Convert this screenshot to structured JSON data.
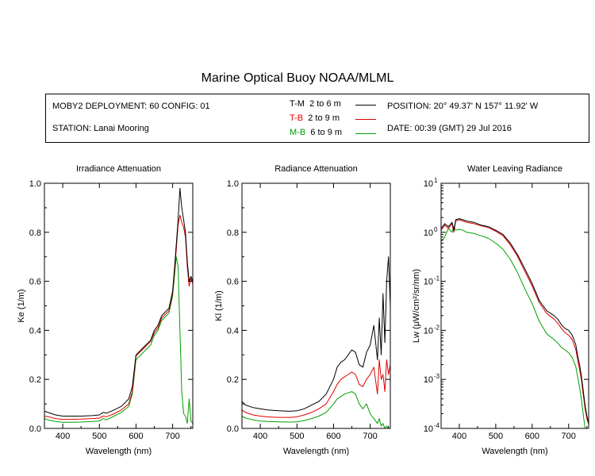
{
  "header": {
    "title": "Marine Optical Buoy NOAA/MLML"
  },
  "info": {
    "deployment": "MOBY2 DEPLOYMENT: 60 CONFIG: 01",
    "station": "STATION: Lanai Mooring",
    "position": "POSITION: 20° 49.37' N   157° 11.92' W",
    "date": "DATE: 00:39 (GMT) 29 Jul 2016"
  },
  "legend": [
    {
      "code": "T-M",
      "range": "2 to 6  m",
      "color": "#000000"
    },
    {
      "code": "T-B",
      "range": "2 to 9  m",
      "color": "#e00000"
    },
    {
      "code": "M-B",
      "range": "6 to 9  m",
      "color": "#00a000"
    }
  ],
  "chart_data": [
    {
      "type": "line",
      "title": "Irradiance Attenuation",
      "xlabel": "Wavelength (nm)",
      "ylabel": "Ke  (1/m)",
      "xlim": [
        350,
        755
      ],
      "ylim": [
        0,
        1.0
      ],
      "xticks": [
        400,
        500,
        600,
        700
      ],
      "yticks": [
        0.0,
        0.2,
        0.4,
        0.6,
        0.8,
        1.0
      ],
      "ytick_labels": [
        "0.0",
        "0.2",
        "0.4",
        "0.6",
        "0.8",
        "1.0"
      ],
      "x": [
        350,
        360,
        380,
        400,
        420,
        450,
        480,
        500,
        510,
        520,
        540,
        560,
        580,
        590,
        600,
        620,
        640,
        650,
        660,
        670,
        690,
        700,
        705,
        710,
        715,
        720,
        725,
        730,
        735,
        740,
        745,
        750,
        755
      ],
      "series": [
        {
          "name": "T-M",
          "values": [
            0.07,
            0.065,
            0.055,
            0.05,
            0.05,
            0.05,
            0.052,
            0.055,
            0.065,
            0.062,
            0.075,
            0.09,
            0.12,
            0.17,
            0.3,
            0.33,
            0.36,
            0.4,
            0.42,
            0.46,
            0.49,
            0.56,
            0.65,
            0.75,
            0.85,
            0.98,
            0.9,
            0.85,
            0.8,
            0.68,
            0.6,
            0.62,
            0.6
          ]
        },
        {
          "name": "T-B",
          "values": [
            0.05,
            0.048,
            0.04,
            0.037,
            0.037,
            0.038,
            0.04,
            0.042,
            0.05,
            0.048,
            0.06,
            0.075,
            0.1,
            0.15,
            0.295,
            0.325,
            0.355,
            0.39,
            0.41,
            0.45,
            0.48,
            0.55,
            0.64,
            0.73,
            0.83,
            0.87,
            0.84,
            0.82,
            0.78,
            0.66,
            0.58,
            0.61,
            0.59
          ]
        },
        {
          "name": "M-B",
          "values": [
            0.04,
            0.035,
            0.028,
            0.025,
            0.025,
            0.026,
            0.028,
            0.03,
            0.04,
            0.035,
            0.05,
            0.065,
            0.09,
            0.14,
            0.28,
            0.31,
            0.34,
            0.38,
            0.4,
            0.44,
            0.47,
            0.54,
            0.62,
            0.7,
            0.66,
            0.4,
            0.15,
            0.06,
            0.05,
            0.02,
            0.12,
            0.03,
            0.02
          ]
        }
      ]
    },
    {
      "type": "line",
      "title": "Radiance Attenuation",
      "xlabel": "Wavelength (nm)",
      "ylabel": "Kl  (1/m)",
      "xlim": [
        350,
        755
      ],
      "ylim": [
        0,
        1.0
      ],
      "xticks": [
        400,
        500,
        600,
        700
      ],
      "yticks": [
        0.0,
        0.2,
        0.4,
        0.6,
        0.8,
        1.0
      ],
      "ytick_labels": [
        "0.0",
        "0.2",
        "0.4",
        "0.6",
        "0.8",
        "1.0"
      ],
      "x": [
        350,
        360,
        380,
        400,
        420,
        450,
        480,
        500,
        520,
        540,
        560,
        580,
        600,
        610,
        620,
        630,
        640,
        650,
        660,
        670,
        680,
        690,
        700,
        710,
        720,
        725,
        730,
        735,
        740,
        745,
        750,
        755
      ],
      "series": [
        {
          "name": "T-M",
          "values": [
            0.11,
            0.095,
            0.085,
            0.08,
            0.075,
            0.072,
            0.07,
            0.072,
            0.08,
            0.095,
            0.11,
            0.14,
            0.2,
            0.25,
            0.27,
            0.28,
            0.3,
            0.32,
            0.31,
            0.26,
            0.25,
            0.31,
            0.34,
            0.42,
            0.28,
            0.45,
            0.3,
            0.55,
            0.35,
            0.6,
            0.7,
            0.5
          ]
        },
        {
          "name": "T-B",
          "values": [
            0.075,
            0.065,
            0.055,
            0.05,
            0.047,
            0.045,
            0.045,
            0.047,
            0.055,
            0.065,
            0.08,
            0.1,
            0.15,
            0.18,
            0.2,
            0.21,
            0.22,
            0.23,
            0.22,
            0.18,
            0.17,
            0.2,
            0.22,
            0.25,
            0.14,
            0.28,
            0.2,
            0.22,
            0.15,
            0.28,
            0.22,
            0.26
          ]
        },
        {
          "name": "M-B",
          "values": [
            0.05,
            0.042,
            0.035,
            0.03,
            0.028,
            0.027,
            0.026,
            0.027,
            0.032,
            0.04,
            0.05,
            0.065,
            0.1,
            0.12,
            0.13,
            0.14,
            0.145,
            0.15,
            0.14,
            0.1,
            0.08,
            0.1,
            0.06,
            0.04,
            0.02,
            0.04,
            0.01,
            0.02,
            0.0,
            0.01,
            0.0,
            0.0
          ]
        }
      ]
    },
    {
      "type": "line",
      "title": "Water Leaving Radiance",
      "xlabel": "Wavelength (nm)",
      "ylabel": "Lw  (μW/cm²/sr/nm)",
      "yscale": "log",
      "xlim": [
        350,
        755
      ],
      "ylim": [
        0.0001,
        10
      ],
      "xticks": [
        400,
        500,
        600,
        700
      ],
      "yticks": [
        0.0001,
        0.001,
        0.01,
        0.1,
        1,
        10
      ],
      "ytick_exponents": [
        "-4",
        "-3",
        "-2",
        "-1",
        "0",
        "1"
      ],
      "x": [
        350,
        360,
        370,
        380,
        385,
        390,
        400,
        410,
        420,
        440,
        460,
        480,
        500,
        520,
        540,
        560,
        580,
        600,
        620,
        640,
        660,
        670,
        680,
        690,
        700,
        710,
        720,
        725,
        730,
        735,
        740,
        745,
        750,
        755
      ],
      "series": [
        {
          "name": "T-M",
          "values": [
            1.2,
            1.5,
            1.3,
            1.6,
            1.1,
            1.8,
            1.9,
            1.8,
            1.7,
            1.6,
            1.4,
            1.3,
            1.1,
            0.9,
            0.6,
            0.35,
            0.18,
            0.09,
            0.04,
            0.025,
            0.02,
            0.017,
            0.013,
            0.011,
            0.01,
            0.008,
            0.005,
            0.003,
            0.002,
            0.0012,
            0.0006,
            0.0003,
            0.00018,
            0.00013
          ]
        },
        {
          "name": "T-B",
          "values": [
            1.1,
            1.4,
            1.2,
            1.5,
            1.0,
            1.7,
            1.8,
            1.7,
            1.6,
            1.5,
            1.35,
            1.25,
            1.05,
            0.85,
            0.55,
            0.32,
            0.16,
            0.08,
            0.036,
            0.022,
            0.017,
            0.014,
            0.011,
            0.009,
            0.008,
            0.0065,
            0.004,
            0.0025,
            0.0016,
            0.001,
            0.0005,
            0.00026,
            0.00016,
            0.00012
          ]
        },
        {
          "name": "M-B",
          "values": [
            0.65,
            0.8,
            1.2,
            1.0,
            1.3,
            1.1,
            1.15,
            1.1,
            1.0,
            0.95,
            0.85,
            0.75,
            0.6,
            0.45,
            0.28,
            0.15,
            0.07,
            0.035,
            0.015,
            0.0085,
            0.0065,
            0.0055,
            0.0045,
            0.004,
            0.0035,
            0.0028,
            0.0018,
            0.0011,
            0.0007,
            0.0004,
            0.0002,
            0.0001,
            0.0001,
            0.0001
          ]
        }
      ]
    }
  ]
}
